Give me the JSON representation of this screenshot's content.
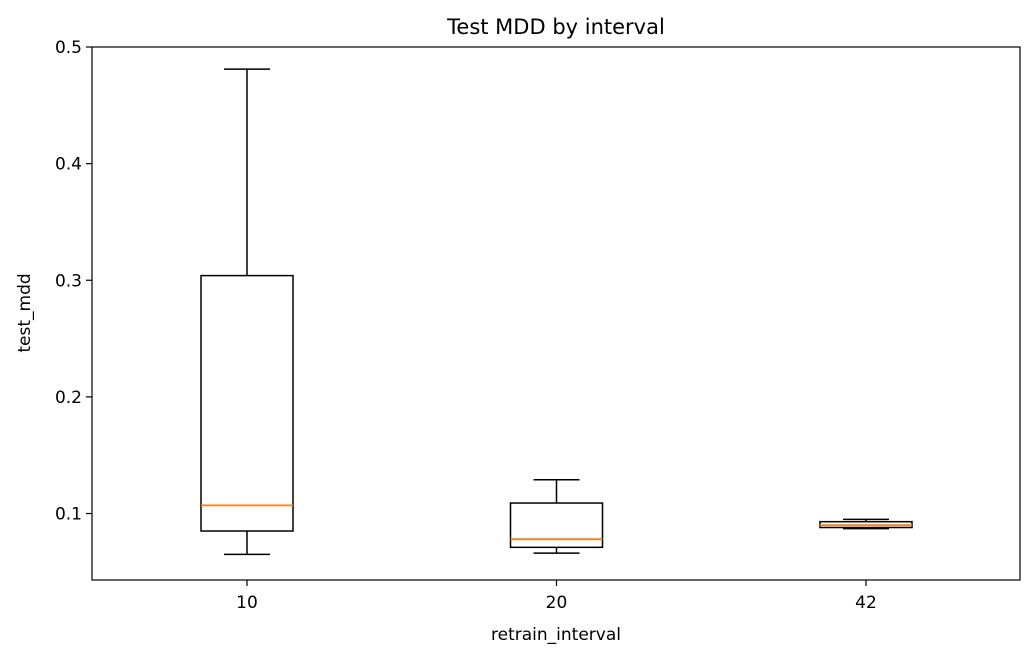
{
  "chart_data": {
    "type": "box",
    "title": "Test MDD by interval",
    "xlabel": "retrain_interval",
    "ylabel": "test_mdd",
    "categories": [
      "10",
      "20",
      "42"
    ],
    "ylim": [
      0.043,
      0.5
    ],
    "yticks": [
      0.1,
      0.2,
      0.3,
      0.4,
      0.5
    ],
    "ytick_labels": [
      "0.1",
      "0.2",
      "0.3",
      "0.4",
      "0.5"
    ],
    "grid": false,
    "boxes": [
      {
        "category": "10",
        "whisker_low": 0.065,
        "q1": 0.085,
        "median": 0.107,
        "q3": 0.304,
        "whisker_high": 0.481
      },
      {
        "category": "20",
        "whisker_low": 0.066,
        "q1": 0.071,
        "median": 0.078,
        "q3": 0.109,
        "whisker_high": 0.129
      },
      {
        "category": "42",
        "whisker_low": 0.087,
        "q1": 0.088,
        "median": 0.09,
        "q3": 0.093,
        "whisker_high": 0.095
      }
    ],
    "colors": {
      "box": "#000000",
      "median": "#ff7f0e"
    }
  }
}
